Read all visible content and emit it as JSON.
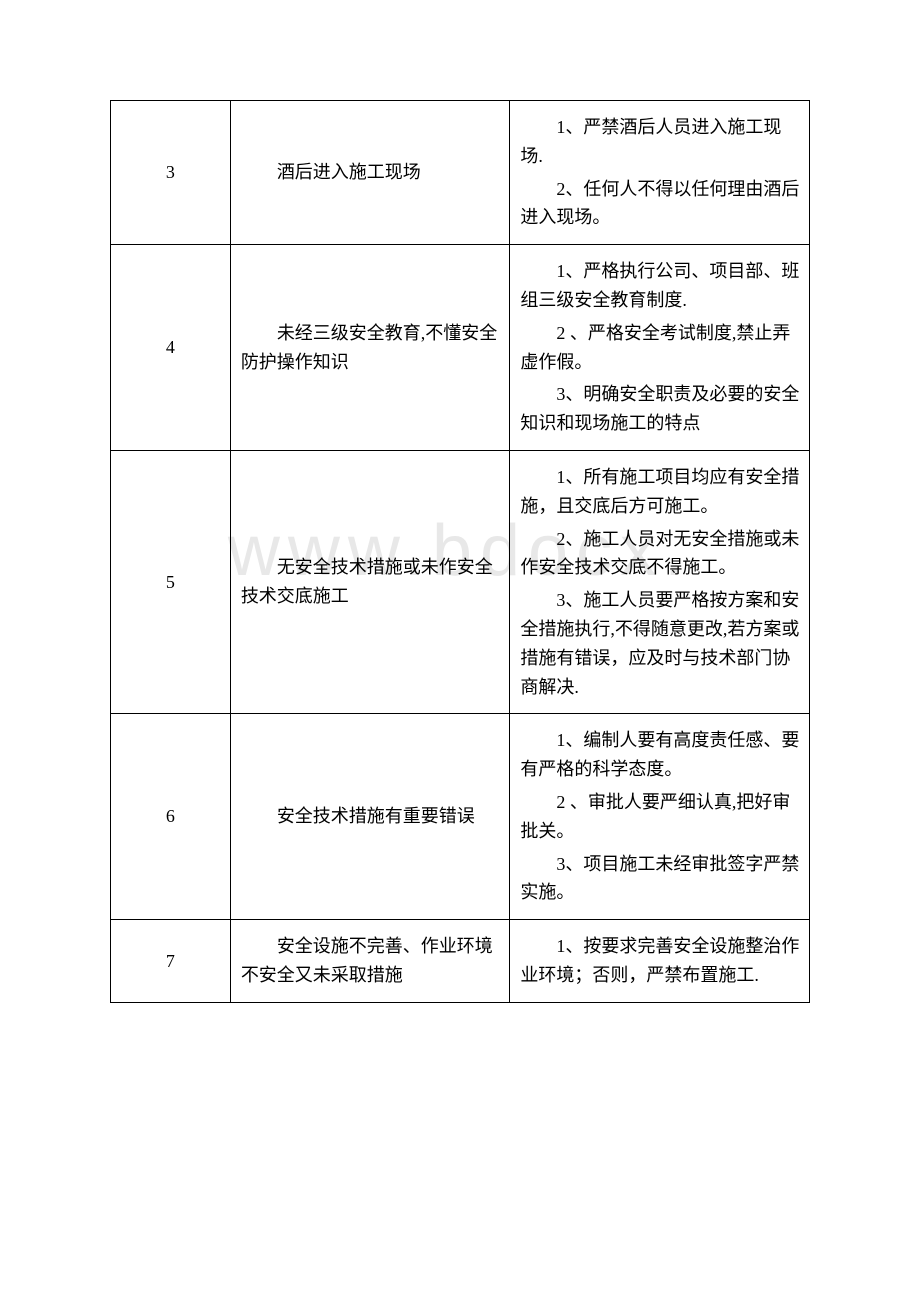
{
  "watermark": "www.bdocx.",
  "table": {
    "rows": [
      {
        "num": "3",
        "desc": "酒后进入施工现场",
        "measures": [
          "1、严禁酒后人员进入施工现场.",
          "2、任何人不得以任何理由酒后进入现场。"
        ]
      },
      {
        "num": "4",
        "desc": "未经三级安全教育,不懂安全防护操作知识",
        "measures": [
          "1、严格执行公司、项目部、班组三级安全教育制度.",
          "2 、严格安全考试制度,禁止弄虚作假。",
          "3、明确安全职责及必要的安全知识和现场施工的特点"
        ]
      },
      {
        "num": "5",
        "desc": "无安全技术措施或未作安全技术交底施工",
        "measures": [
          "1、所有施工项目均应有安全措施，且交底后方可施工。",
          "2、施工人员对无安全措施或未作安全技术交底不得施工。",
          "3、施工人员要严格按方案和安全措施执行,不得随意更改,若方案或措施有错误，应及时与技术部门协商解决."
        ]
      },
      {
        "num": "6",
        "desc": "安全技术措施有重要错误",
        "measures": [
          "1、编制人要有高度责任感、要有严格的科学态度。",
          "2 、审批人要严细认真,把好审批关。",
          "3、项目施工未经审批签字严禁实施。"
        ]
      },
      {
        "num": "7",
        "desc": "安全设施不完善、作业环境不安全又未采取措施",
        "measures": [
          "1、按要求完善安全设施整治作业环境；否则，严禁布置施工."
        ]
      }
    ]
  }
}
